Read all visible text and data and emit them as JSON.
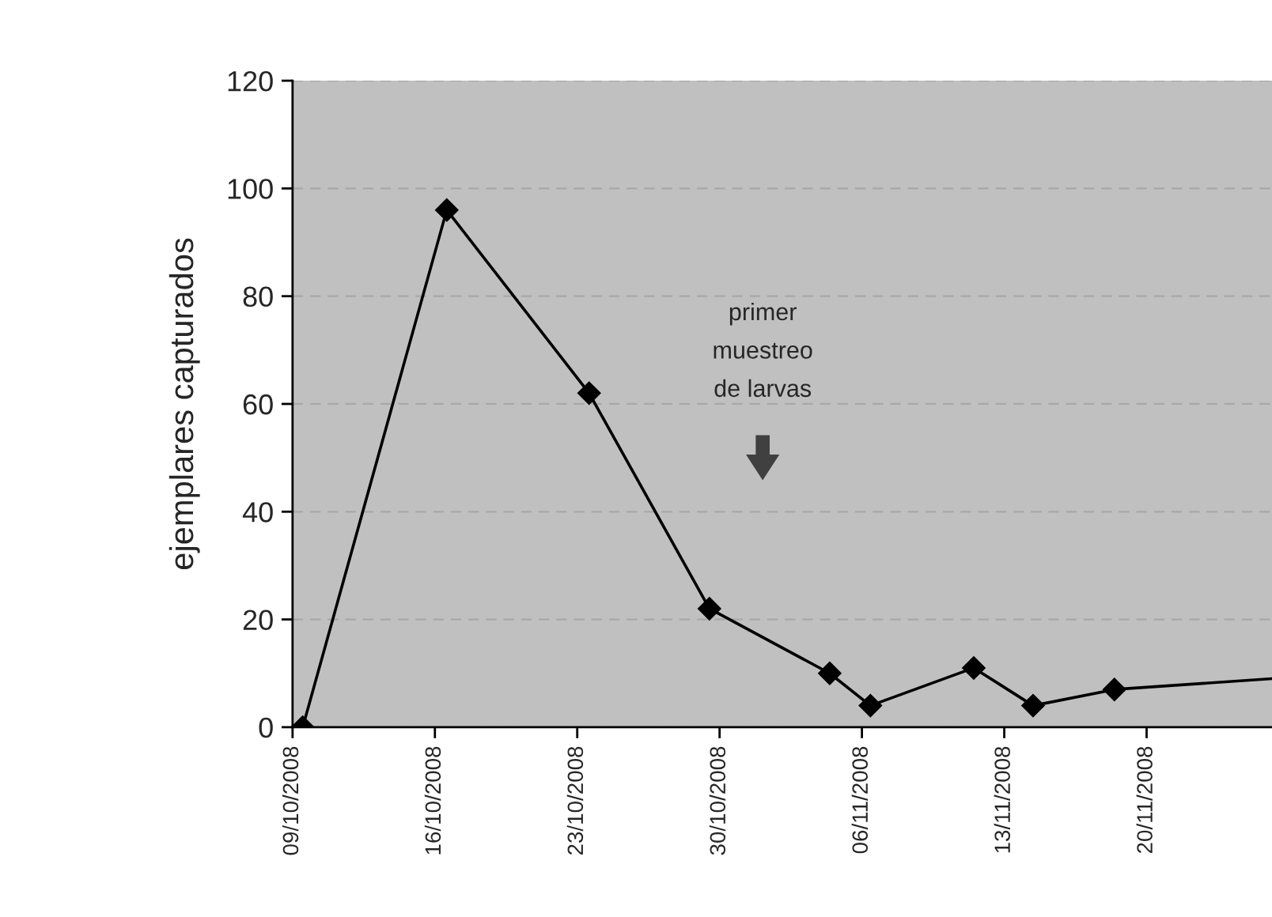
{
  "chart_data": {
    "type": "line",
    "ylabel": "ejemplares capturados",
    "series": [
      {
        "color": "#000000",
        "marker": "diamond",
        "x": [
          "2008-10-09T12:00",
          "2008-10-16T14:00",
          "2008-10-23T14:00",
          "2008-10-29T12:00",
          "2008-11-04T10:00",
          "2008-11-06T10:00",
          "2008-11-11T12:00",
          "2008-11-14T10:00",
          "2008-11-18T10:00"
        ],
        "values": [
          0,
          96,
          62,
          22,
          10,
          4,
          11,
          4,
          7
        ]
      },
      {
        "color": "#000000",
        "marker": "none",
        "x": [
          "2008-11-18T10:00",
          "2008-11-26T04:00"
        ],
        "values": [
          7,
          9
        ]
      }
    ],
    "xlim": [
      "2008-10-09",
      "2008-11-26T04:00"
    ],
    "xticks": [
      {
        "value": "2008-10-09",
        "label": "09/10/2008"
      },
      {
        "value": "2008-10-16",
        "label": "16/10/2008"
      },
      {
        "value": "2008-10-23",
        "label": "23/10/2008"
      },
      {
        "value": "2008-10-30",
        "label": "30/10/2008"
      },
      {
        "value": "2008-11-06",
        "label": "06/11/2008"
      },
      {
        "value": "2008-11-13",
        "label": "13/11/2008"
      },
      {
        "value": "2008-11-20",
        "label": "20/11/2008"
      }
    ],
    "ylim": [
      0,
      120
    ],
    "yticks": [
      0,
      20,
      40,
      60,
      80,
      100,
      120
    ],
    "grid": "y",
    "legend": false,
    "line_style": "solid",
    "annotations": [
      "primer\nmuestreo\nde larvas"
    ]
  }
}
